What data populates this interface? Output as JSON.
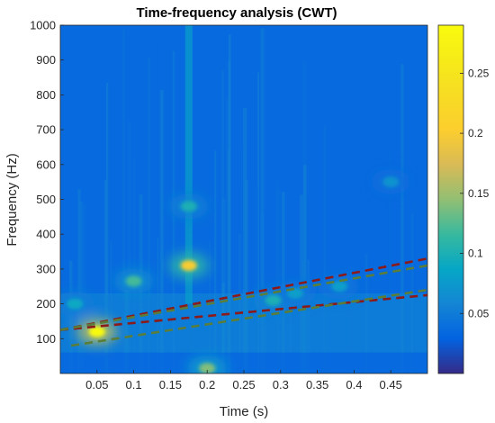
{
  "chart_data": {
    "type": "heatmap",
    "title": "Time-frequency analysis (CWT)",
    "xlabel": "Time (s)",
    "ylabel": "Frequency (Hz)",
    "xlim": [
      0,
      0.5
    ],
    "ylim": [
      0,
      1000
    ],
    "xticks": [
      "0.05",
      "0.1",
      "0.15",
      "0.2",
      "0.25",
      "0.3",
      "0.35",
      "0.4",
      "0.45"
    ],
    "xtick_values": [
      0.05,
      0.1,
      0.15,
      0.2,
      0.25,
      0.3,
      0.35,
      0.4,
      0.45
    ],
    "yticks": [
      "100",
      "200",
      "300",
      "400",
      "500",
      "600",
      "700",
      "800",
      "900",
      "1000"
    ],
    "ytick_values": [
      100,
      200,
      300,
      400,
      500,
      600,
      700,
      800,
      900,
      1000
    ],
    "colorbar": {
      "colormap": "parula",
      "range": [
        0,
        0.29
      ],
      "ticks": [
        "0.05",
        "0.1",
        "0.15",
        "0.2",
        "0.25"
      ],
      "tick_values": [
        0.05,
        0.1,
        0.15,
        0.2,
        0.25
      ]
    },
    "background_level": 0.035,
    "hotspots": [
      {
        "t": 0.05,
        "f": 120,
        "amp": 0.29
      },
      {
        "t": 0.175,
        "f": 310,
        "amp": 0.2
      },
      {
        "t": 0.175,
        "f": 480,
        "amp": 0.1
      },
      {
        "t": 0.1,
        "f": 265,
        "amp": 0.12
      },
      {
        "t": 0.02,
        "f": 200,
        "amp": 0.09
      },
      {
        "t": 0.29,
        "f": 210,
        "amp": 0.1
      },
      {
        "t": 0.32,
        "f": 230,
        "amp": 0.08
      },
      {
        "t": 0.45,
        "f": 550,
        "amp": 0.07
      },
      {
        "t": 0.2,
        "f": 15,
        "amp": 0.14
      },
      {
        "t": 0.38,
        "f": 250,
        "amp": 0.08
      }
    ],
    "annotations": [
      {
        "type": "dashed-line",
        "color": "#8b1a1a",
        "points": [
          [
            0.0,
            125
          ],
          [
            0.5,
            330
          ]
        ]
      },
      {
        "type": "dashed-line",
        "color": "#8b1a1a",
        "points": [
          [
            0.0,
            125
          ],
          [
            0.5,
            225
          ]
        ]
      },
      {
        "type": "dashed-line",
        "color": "#5a7d3a",
        "points": [
          [
            0.0,
            125
          ],
          [
            0.5,
            310
          ]
        ]
      },
      {
        "type": "dashed-line",
        "color": "#5a7d3a",
        "points": [
          [
            0.015,
            80
          ],
          [
            0.5,
            240
          ]
        ]
      }
    ]
  }
}
